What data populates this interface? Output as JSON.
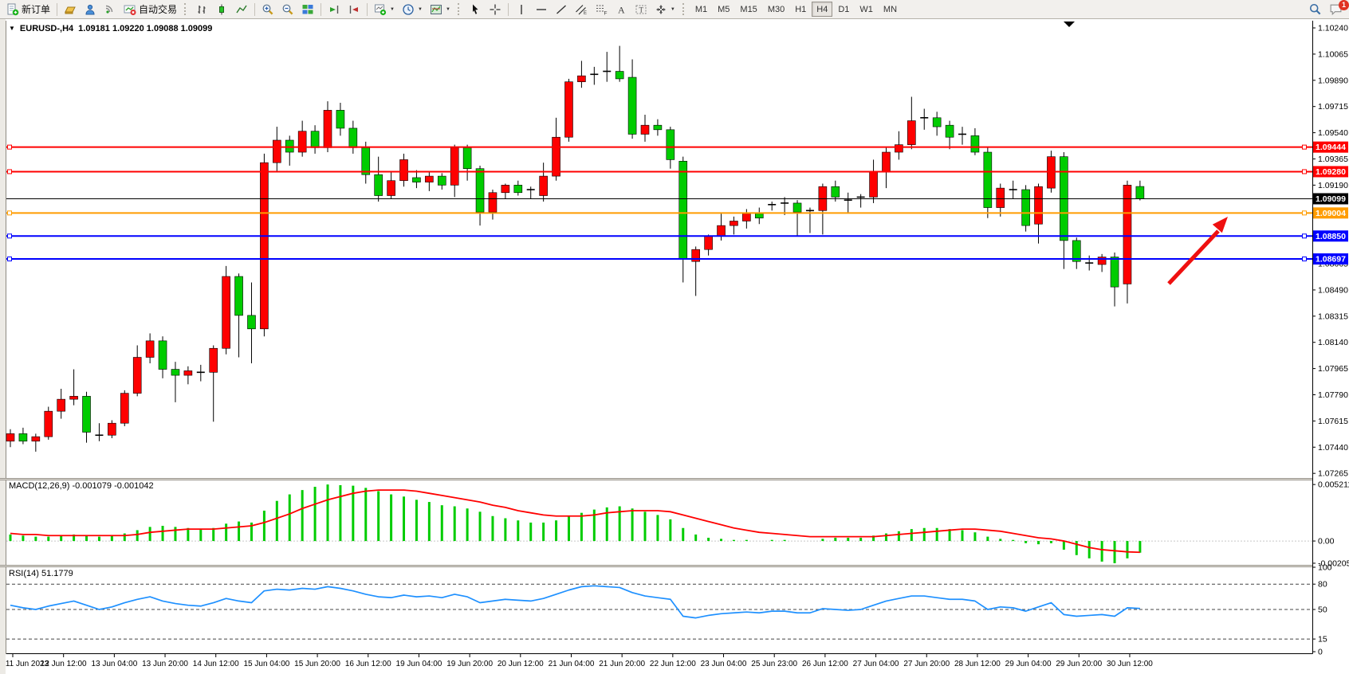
{
  "toolbar": {
    "new_order_label": "新订单",
    "autotrading_label": "自动交易",
    "timeframes": [
      "M1",
      "M5",
      "M15",
      "M30",
      "H1",
      "H4",
      "D1",
      "W1",
      "MN"
    ],
    "active_timeframe": "H4",
    "notification_count": "1"
  },
  "chart": {
    "title": "EURUSD-,H4",
    "ohlc": "1.09181 1.09220 1.09088 1.09099"
  },
  "indicators": {
    "macd_label": "MACD(12,26,9) -0.001079 -0.001042",
    "rsi_label": "RSI(14) 51.1779"
  },
  "chart_data": {
    "type": "candlestick",
    "symbol": "EURUSD-",
    "timeframe": "H4",
    "last_ohlc": {
      "open": 1.09181,
      "high": 1.0922,
      "low": 1.09088,
      "close": 1.09099
    },
    "price_axis": {
      "ylim": [
        1.07234,
        1.10288
      ],
      "ticks": [
        "1.10240",
        "1.10065",
        "1.09890",
        "1.09715",
        "1.09540",
        "1.09365",
        "1.09190",
        "1.09015",
        "1.08840",
        "1.08665",
        "1.08490",
        "1.08315",
        "1.08140",
        "1.07965",
        "1.07790",
        "1.07615",
        "1.07440",
        "1.07265"
      ]
    },
    "time_labels": [
      "11 Jun 2023",
      "12 Jun 12:00",
      "13 Jun 04:00",
      "13 Jun 20:00",
      "14 Jun 12:00",
      "15 Jun 04:00",
      "15 Jun 20:00",
      "16 Jun 12:00",
      "19 Jun 04:00",
      "19 Jun 20:00",
      "20 Jun 12:00",
      "21 Jun 04:00",
      "21 Jun 20:00",
      "22 Jun 12:00",
      "23 Jun 04:00",
      "25 Jun 23:00",
      "26 Jun 12:00",
      "27 Jun 04:00",
      "27 Jun 20:00",
      "28 Jun 12:00",
      "29 Jun 04:00",
      "29 Jun 20:00",
      "30 Jun 12:00"
    ],
    "candles_per_label": 4,
    "colors": {
      "bull": "#fe0000",
      "bear": "#00cc00",
      "wick": "#000000",
      "background": "#ffffff"
    },
    "candles": [
      [
        1.0748,
        1.0756,
        1.0744,
        1.0753
      ],
      [
        1.0753,
        1.0757,
        1.0746,
        1.0748
      ],
      [
        1.0748,
        1.0753,
        1.0741,
        1.0751
      ],
      [
        1.0751,
        1.0771,
        1.0749,
        1.0768
      ],
      [
        1.0768,
        1.0783,
        1.0763,
        1.0776
      ],
      [
        1.0776,
        1.0796,
        1.0772,
        1.0778
      ],
      [
        1.0778,
        1.0781,
        1.0747,
        1.0754
      ],
      [
        1.0754,
        1.076,
        1.0748,
        1.0752
      ],
      [
        1.0752,
        1.0762,
        1.075,
        1.076
      ],
      [
        1.076,
        1.0782,
        1.0758,
        1.078
      ],
      [
        1.078,
        1.0812,
        1.0778,
        1.0804
      ],
      [
        1.0804,
        1.082,
        1.08,
        1.0815
      ],
      [
        1.0815,
        1.0818,
        1.079,
        1.0796
      ],
      [
        1.0796,
        1.0801,
        1.0774,
        1.0792
      ],
      [
        1.0792,
        1.0798,
        1.0786,
        1.0795
      ],
      [
        1.0795,
        1.0799,
        1.0788,
        1.0794
      ],
      [
        1.0794,
        1.0812,
        1.0761,
        1.081
      ],
      [
        1.081,
        1.0865,
        1.0806,
        1.0858
      ],
      [
        1.0858,
        1.086,
        1.0804,
        1.0832
      ],
      [
        1.0832,
        1.0854,
        1.08,
        1.0823
      ],
      [
        1.0823,
        1.094,
        1.0818,
        1.0934
      ],
      [
        1.0934,
        1.0958,
        1.0928,
        1.0949
      ],
      [
        1.0949,
        1.0952,
        1.0932,
        1.0941
      ],
      [
        1.0941,
        1.0962,
        1.0938,
        1.0955
      ],
      [
        1.0955,
        1.0959,
        1.094,
        1.0944
      ],
      [
        1.0944,
        1.0975,
        1.0941,
        1.0969
      ],
      [
        1.0969,
        1.0974,
        1.0952,
        1.0957
      ],
      [
        1.0957,
        1.0962,
        1.094,
        1.0944
      ],
      [
        1.0944,
        1.0948,
        1.092,
        1.0926
      ],
      [
        1.0926,
        1.0938,
        1.0908,
        1.0912
      ],
      [
        1.0912,
        1.0928,
        1.091,
        1.0922
      ],
      [
        1.0922,
        1.094,
        1.0918,
        1.0936
      ],
      [
        1.0924,
        1.0929,
        1.0917,
        1.0921
      ],
      [
        1.0921,
        1.0928,
        1.0915,
        1.0925
      ],
      [
        1.0925,
        1.0927,
        1.0916,
        1.0919
      ],
      [
        1.0919,
        1.0946,
        1.0911,
        1.0944
      ],
      [
        1.0944,
        1.0946,
        1.0922,
        1.093
      ],
      [
        1.093,
        1.0932,
        1.0892,
        1.0901
      ],
      [
        1.0901,
        1.0916,
        1.0896,
        1.0914
      ],
      [
        1.0914,
        1.092,
        1.091,
        1.0919
      ],
      [
        1.0919,
        1.0922,
        1.0912,
        1.0914
      ],
      [
        1.0914,
        1.0918,
        1.091,
        1.0916
      ],
      [
        1.0912,
        1.0934,
        1.0908,
        1.0925
      ],
      [
        1.0925,
        1.0964,
        1.0922,
        1.0951
      ],
      [
        1.0951,
        1.099,
        1.0948,
        1.0988
      ],
      [
        1.0988,
        1.1002,
        1.0984,
        1.0992
      ],
      [
        1.0992,
        1.0998,
        1.0986,
        1.0993
      ],
      [
        1.0993,
        1.1008,
        1.0988,
        1.0995
      ],
      [
        1.0995,
        1.1012,
        1.0988,
        1.099
      ],
      [
        1.0991,
        1.1003,
        1.095,
        1.0953
      ],
      [
        1.0953,
        1.0966,
        1.0948,
        1.0959
      ],
      [
        1.0959,
        1.0963,
        1.0952,
        1.0956
      ],
      [
        1.0956,
        1.0958,
        1.093,
        1.0936
      ],
      [
        1.0935,
        1.0938,
        1.0854,
        1.087
      ],
      [
        1.0868,
        1.0878,
        1.0845,
        1.0876
      ],
      [
        1.0876,
        1.0886,
        1.0872,
        1.0885
      ],
      [
        1.0885,
        1.09,
        1.0882,
        1.0892
      ],
      [
        1.0892,
        1.0898,
        1.0886,
        1.0895
      ],
      [
        1.0895,
        1.0903,
        1.089,
        1.09
      ],
      [
        1.09,
        1.0904,
        1.0893,
        1.0897
      ],
      [
        1.0905,
        1.0908,
        1.0902,
        1.0906
      ],
      [
        1.0906,
        1.0911,
        1.0899,
        1.0907
      ],
      [
        1.0907,
        1.0909,
        1.0885,
        1.0901
      ],
      [
        1.0901,
        1.0904,
        1.0887,
        1.0902
      ],
      [
        1.0902,
        1.092,
        1.0886,
        1.0918
      ],
      [
        1.0918,
        1.0922,
        1.0908,
        1.0911
      ],
      [
        1.0911,
        1.0914,
        1.09,
        1.0909
      ],
      [
        1.0909,
        1.0913,
        1.0904,
        1.0911
      ],
      [
        1.0911,
        1.0936,
        1.0907,
        1.0928
      ],
      [
        1.0928,
        1.0944,
        1.0917,
        1.0941
      ],
      [
        1.0941,
        1.0955,
        1.0936,
        1.0946
      ],
      [
        1.0946,
        1.0978,
        1.0943,
        1.0962
      ],
      [
        1.0962,
        1.097,
        1.0956,
        1.0964
      ],
      [
        1.0964,
        1.0968,
        1.0952,
        1.0958
      ],
      [
        1.0959,
        1.0962,
        1.0943,
        1.0951
      ],
      [
        1.0951,
        1.0958,
        1.0946,
        1.0953
      ],
      [
        1.0952,
        1.0957,
        1.0939,
        1.0941
      ],
      [
        1.0941,
        1.0944,
        1.0897,
        1.0904
      ],
      [
        1.0904,
        1.092,
        1.0898,
        1.0917
      ],
      [
        1.0917,
        1.0922,
        1.091,
        1.0916
      ],
      [
        1.0916,
        1.0919,
        1.0888,
        1.0892
      ],
      [
        1.0893,
        1.092,
        1.088,
        1.0918
      ],
      [
        1.0917,
        1.0942,
        1.0914,
        1.0938
      ],
      [
        1.0938,
        1.0941,
        1.0863,
        1.0882
      ],
      [
        1.0882,
        1.0884,
        1.0863,
        1.0868
      ],
      [
        1.0868,
        1.0872,
        1.0862,
        1.0867
      ],
      [
        1.0866,
        1.0873,
        1.0861,
        1.0871
      ],
      [
        1.0871,
        1.0874,
        1.0838,
        1.0851
      ],
      [
        1.0853,
        1.0922,
        1.084,
        1.0919
      ],
      [
        1.09181,
        1.0922,
        1.09088,
        1.09099
      ]
    ],
    "hlines": [
      {
        "price": 1.09444,
        "label": "1.09444",
        "color": "#ff0000",
        "style": "object"
      },
      {
        "price": 1.0928,
        "label": "1.09280",
        "color": "#ff0000",
        "style": "object"
      },
      {
        "price": 1.09099,
        "label": "1.09099",
        "color": "#000000",
        "style": "bid"
      },
      {
        "price": 1.09004,
        "label": "1.09004",
        "color": "#ff9c00",
        "style": "object"
      },
      {
        "price": 1.0885,
        "label": "1.08850",
        "color": "#0000ff",
        "style": "object"
      },
      {
        "price": 1.08697,
        "label": "1.08697",
        "color": "#0000ff",
        "style": "object"
      }
    ],
    "macd": {
      "title": "MACD(12,26,9)",
      "value": -0.001079,
      "signal_value": -0.001042,
      "scale_labels": [
        "0.005211",
        "0.00",
        "-0.00205"
      ],
      "ylim": [
        -0.0022,
        0.00559
      ],
      "histogram_color": "#00cc00",
      "signal_color": "#ff0000",
      "histogram": [
        0.0006,
        0.0005,
        0.0004,
        0.0004,
        0.0005,
        0.0006,
        0.0005,
        0.0004,
        0.0005,
        0.0007,
        0.001,
        0.0013,
        0.0014,
        0.0013,
        0.0012,
        0.0011,
        0.0012,
        0.0016,
        0.0018,
        0.0017,
        0.0028,
        0.0037,
        0.0043,
        0.0047,
        0.005,
        0.00521,
        0.00515,
        0.0051,
        0.0049,
        0.0046,
        0.0043,
        0.0041,
        0.0038,
        0.0036,
        0.0033,
        0.0032,
        0.003,
        0.0027,
        0.0023,
        0.0021,
        0.0019,
        0.0017,
        0.0017,
        0.0019,
        0.0023,
        0.0026,
        0.0029,
        0.0031,
        0.0032,
        0.003,
        0.0027,
        0.0024,
        0.002,
        0.0012,
        0.0006,
        0.0003,
        0.0002,
        0.0001,
        0.0001,
        0.0,
        0.0001,
        0.0001,
        0.0,
        0.0,
        0.0002,
        0.0003,
        0.0003,
        0.0003,
        0.0005,
        0.0007,
        0.0009,
        0.0011,
        0.0012,
        0.0012,
        0.0011,
        0.001,
        0.0008,
        0.0004,
        0.0002,
        0.0001,
        -0.0002,
        -0.0003,
        -0.0002,
        -0.0008,
        -0.0013,
        -0.0016,
        -0.0019,
        -0.00205,
        -0.0016,
        -0.001079
      ],
      "signal": [
        0.0007,
        0.0006,
        0.0006,
        0.0005,
        0.0005,
        0.0005,
        0.0005,
        0.0005,
        0.0005,
        0.0005,
        0.0006,
        0.0008,
        0.0009,
        0.001,
        0.0011,
        0.0011,
        0.0011,
        0.0012,
        0.0013,
        0.0014,
        0.0017,
        0.0021,
        0.0025,
        0.003,
        0.0034,
        0.0038,
        0.0041,
        0.0044,
        0.0046,
        0.0047,
        0.0047,
        0.0047,
        0.0046,
        0.0044,
        0.0042,
        0.004,
        0.0038,
        0.0036,
        0.0033,
        0.0031,
        0.0028,
        0.0026,
        0.0024,
        0.0023,
        0.0023,
        0.0023,
        0.0024,
        0.0026,
        0.0027,
        0.0028,
        0.0028,
        0.0028,
        0.0027,
        0.0024,
        0.0021,
        0.0018,
        0.0015,
        0.0012,
        0.001,
        0.0008,
        0.0007,
        0.0006,
        0.0005,
        0.0004,
        0.0004,
        0.0004,
        0.0004,
        0.0004,
        0.0004,
        0.0005,
        0.0006,
        0.0007,
        0.0008,
        0.0009,
        0.001,
        0.0011,
        0.0011,
        0.001,
        0.0009,
        0.0007,
        0.0005,
        0.0003,
        0.0002,
        0.0,
        -0.0003,
        -0.0006,
        -0.0008,
        -0.0009,
        -0.001,
        -0.001042
      ]
    },
    "rsi": {
      "title": "RSI(14)",
      "value": 51.1779,
      "levels": [
        80,
        50,
        15
      ],
      "scale_labels": [
        "100",
        "80",
        "50",
        "15",
        "0"
      ],
      "ylim": [
        0,
        100
      ],
      "line_color": "#1e90ff",
      "values": [
        55,
        52,
        50,
        54,
        57,
        60,
        55,
        50,
        53,
        58,
        62,
        65,
        60,
        57,
        55,
        54,
        58,
        63,
        60,
        58,
        72,
        74,
        73,
        75,
        74,
        77,
        75,
        72,
        68,
        65,
        64,
        67,
        65,
        66,
        64,
        68,
        65,
        58,
        60,
        62,
        61,
        60,
        63,
        68,
        73,
        77,
        78,
        77,
        76,
        70,
        66,
        64,
        62,
        42,
        40,
        43,
        45,
        46,
        47,
        46,
        48,
        48,
        46,
        46,
        51,
        50,
        49,
        50,
        55,
        60,
        63,
        66,
        66,
        64,
        62,
        62,
        60,
        50,
        53,
        52,
        48,
        53,
        58,
        44,
        42,
        43,
        44,
        42,
        52,
        51.18
      ]
    },
    "annotations": [
      {
        "type": "arrow",
        "direction": "up-right",
        "color": "#ef1010"
      }
    ]
  }
}
